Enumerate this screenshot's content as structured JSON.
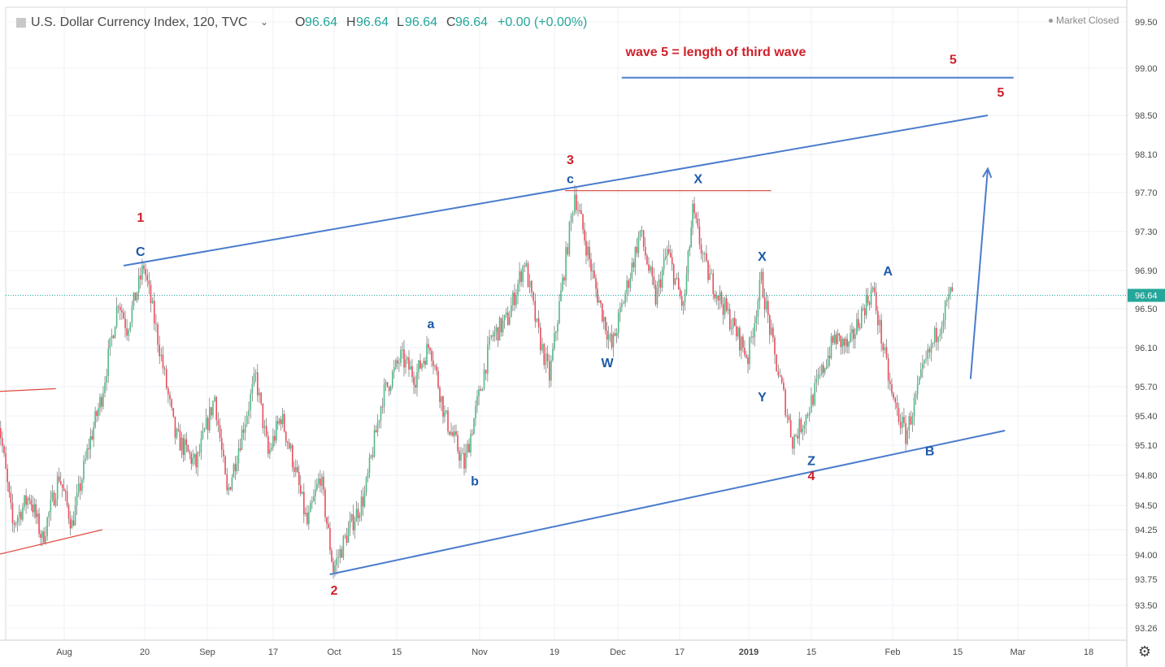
{
  "header": {
    "flag_icon": "flag-icon",
    "symbol": "U.S. Dollar Currency Index, 120, TVC",
    "dropdown_icon": "chevron-down-icon",
    "ohlc": {
      "o_label": "O",
      "o_value": "96.64",
      "h_label": "H",
      "h_value": "96.64",
      "l_label": "L",
      "l_value": "96.64",
      "c_label": "C",
      "c_value": "96.64",
      "change": "+0.00 (+0.00%)"
    }
  },
  "status": {
    "market": "Market Closed"
  },
  "settings_icon": "gear-icon",
  "colors": {
    "up": "#53b987",
    "down": "#eb4d5c",
    "wave_blue": "#1d5aa8",
    "wave_red": "#e01f27",
    "channel": "#4a7ccc",
    "label_red": "#d0202a",
    "price_badge": "#26a69a",
    "grid": "#eef0f4"
  },
  "chart_data": {
    "type": "candlestick",
    "y_ticks": [
      "99.50",
      "99.00",
      "98.50",
      "98.10",
      "97.70",
      "97.30",
      "96.90",
      "96.50",
      "96.10",
      "95.70",
      "95.40",
      "95.10",
      "94.80",
      "94.50",
      "94.25",
      "94.00",
      "93.75",
      "93.50",
      "93.26"
    ],
    "x_ticks": [
      "Aug",
      "20",
      "Sep",
      "17",
      "Oct",
      "15",
      "Nov",
      "19",
      "Dec",
      "17",
      "2019",
      "15",
      "Feb",
      "15",
      "Mar",
      "18"
    ],
    "last_price": "96.64",
    "price_path": [
      [
        "Jul 16",
        95.6
      ],
      [
        "Jul 20",
        94.3
      ],
      [
        "Jul 24",
        94.6
      ],
      [
        "Jul 27",
        94.15
      ],
      [
        "Jul 31",
        94.8
      ],
      [
        "Aug 3",
        94.3
      ],
      [
        "Aug 7",
        95.1
      ],
      [
        "Aug 10",
        95.6
      ],
      [
        "Aug 14",
        96.6
      ],
      [
        "Aug 16",
        96.3
      ],
      [
        "Aug 20",
        96.95
      ],
      [
        "Aug 23",
        96.1
      ],
      [
        "Aug 26",
        95.2
      ],
      [
        "Aug 30",
        94.9
      ],
      [
        "Sep 3",
        95.6
      ],
      [
        "Sep 6",
        94.6
      ],
      [
        "Sep 10",
        95.3
      ],
      [
        "Sep 13",
        95.8
      ],
      [
        "Sep 16",
        95.0
      ],
      [
        "Sep 19",
        95.4
      ],
      [
        "Sep 22",
        94.9
      ],
      [
        "Sep 25",
        94.3
      ],
      [
        "Sep 28",
        94.8
      ],
      [
        "Oct 1",
        93.85
      ],
      [
        "Oct 4",
        94.2
      ],
      [
        "Oct 8",
        94.6
      ],
      [
        "Oct 12",
        95.6
      ],
      [
        "Oct 16",
        96.0
      ],
      [
        "Oct 19",
        95.8
      ],
      [
        "Oct 22",
        96.15
      ],
      [
        "Oct 25",
        95.4
      ],
      [
        "Oct 29",
        94.9
      ],
      [
        "Nov 1",
        95.6
      ],
      [
        "Nov 4",
        96.2
      ],
      [
        "Nov 8",
        96.4
      ],
      [
        "Nov 12",
        97.0
      ],
      [
        "Nov 15",
        96.3
      ],
      [
        "Nov 18",
        95.8
      ],
      [
        "Nov 21",
        96.9
      ],
      [
        "Nov 23",
        97.7
      ],
      [
        "Nov 27",
        96.7
      ],
      [
        "Nov 30",
        96.1
      ],
      [
        "Dec 4",
        96.8
      ],
      [
        "Dec 7",
        97.3
      ],
      [
        "Dec 11",
        96.6
      ],
      [
        "Dec 14",
        97.1
      ],
      [
        "Dec 18",
        96.5
      ],
      [
        "Dec 20",
        97.5
      ],
      [
        "Dec 23",
        96.9
      ],
      [
        "Dec 27",
        96.5
      ],
      [
        "Jan 1",
        96.0
      ],
      [
        "Jan 4",
        96.8
      ],
      [
        "Jan 7",
        96.0
      ],
      [
        "Jan 9",
        95.6
      ],
      [
        "Jan 11",
        95.15
      ],
      [
        "Jan 14",
        95.4
      ],
      [
        "Jan 17",
        95.8
      ],
      [
        "Jan 20",
        96.2
      ],
      [
        "Jan 23",
        96.1
      ],
      [
        "Jan 26",
        96.5
      ],
      [
        "Jan 28",
        96.7
      ],
      [
        "Feb 1",
        95.6
      ],
      [
        "Feb 4",
        95.2
      ],
      [
        "Feb 8",
        95.9
      ],
      [
        "Feb 11",
        96.3
      ],
      [
        "Feb 14",
        96.7
      ]
    ],
    "channel_upper": [
      [
        "Aug 15",
        96.95
      ],
      [
        "Feb 22",
        98.5
      ]
    ],
    "channel_lower": [
      [
        "Sep 30",
        93.8
      ],
      [
        "Feb 26",
        95.25
      ]
    ],
    "target_line": {
      "from": "Dec 2",
      "to": "Feb 28",
      "y": 98.9
    },
    "wave3_top_line": {
      "from": "Nov 21",
      "to": "Jan 6",
      "y": 97.72
    },
    "left_upper_line": [
      [
        "Jul 16",
        95.65
      ],
      [
        "Jul 30",
        95.68
      ]
    ],
    "left_lower_line": [
      [
        "Jul 16",
        94.0
      ],
      [
        "Aug 10",
        94.25
      ]
    ],
    "arrow": {
      "from": [
        "Feb 18",
        95.78
      ],
      "to": [
        "Feb 22",
        97.95
      ]
    },
    "annotations": [
      {
        "text": "1",
        "x": "Aug 19",
        "y": 97.4,
        "color": "red"
      },
      {
        "text": "C",
        "x": "Aug 19",
        "y": 97.05,
        "color": "blue"
      },
      {
        "text": "2",
        "x": "Oct 1",
        "y": 93.6,
        "color": "red"
      },
      {
        "text": "a",
        "x": "Oct 22",
        "y": 96.3,
        "color": "blue"
      },
      {
        "text": "b",
        "x": "Oct 31",
        "y": 94.7,
        "color": "blue"
      },
      {
        "text": "3",
        "x": "Nov 22",
        "y": 98.0,
        "color": "red"
      },
      {
        "text": "c",
        "x": "Nov 22",
        "y": 97.8,
        "color": "blue"
      },
      {
        "text": "W",
        "x": "Nov 29",
        "y": 95.9,
        "color": "blue"
      },
      {
        "text": "X",
        "x": "Dec 21",
        "y": 97.8,
        "color": "blue"
      },
      {
        "text": "X",
        "x": "Jan 4",
        "y": 97.0,
        "color": "blue"
      },
      {
        "text": "Y",
        "x": "Jan 4",
        "y": 95.55,
        "color": "blue"
      },
      {
        "text": "Z",
        "x": "Jan 15",
        "y": 94.9,
        "color": "blue"
      },
      {
        "text": "4",
        "x": "Jan 15",
        "y": 94.75,
        "color": "red"
      },
      {
        "text": "A",
        "x": "Jan 31",
        "y": 96.85,
        "color": "blue"
      },
      {
        "text": "B",
        "x": "Feb 9",
        "y": 95.0,
        "color": "blue"
      },
      {
        "text": "5",
        "x": "Feb 25",
        "y": 98.7,
        "color": "red"
      },
      {
        "text": "5",
        "x": "Feb 14",
        "y": 99.05,
        "color": "red"
      }
    ],
    "note": "wave 5 = length of third wave"
  }
}
